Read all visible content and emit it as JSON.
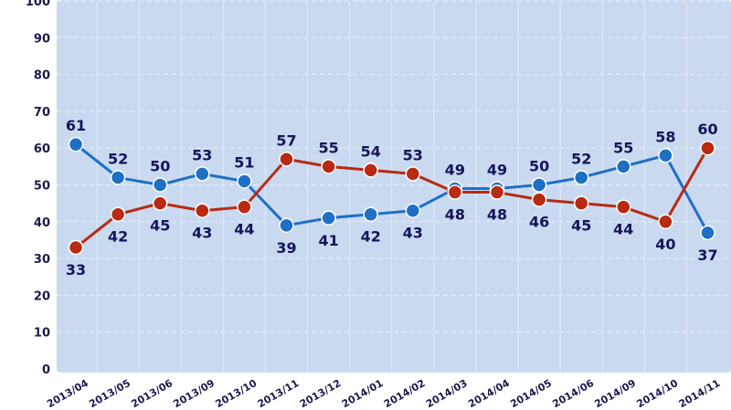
{
  "chart_data": {
    "type": "line",
    "title": "",
    "xlabel": "",
    "ylabel": "",
    "ylim": [
      0,
      100
    ],
    "yticks": [
      "0",
      "10",
      "20",
      "30",
      "40",
      "50",
      "60",
      "70",
      "80",
      "90",
      "100"
    ],
    "grid": true,
    "background_color": "#c9daf0",
    "categories": [
      "2013/04",
      "2013/05",
      "2013/06",
      "2013/09",
      "2013/10",
      "2013/11",
      "2013/12",
      "2014/01",
      "2014/02",
      "2014/03",
      "2014/04",
      "2014/05",
      "2014/06",
      "2014/09",
      "2014/10",
      "2014/11"
    ],
    "series": [
      {
        "color": "#1f6fc5",
        "values": [
          61,
          52,
          50,
          53,
          51,
          39,
          41,
          42,
          43,
          49,
          49,
          50,
          52,
          55,
          58,
          37
        ]
      },
      {
        "color": "#b82a12",
        "values": [
          33,
          42,
          45,
          43,
          44,
          57,
          55,
          54,
          53,
          48,
          48,
          46,
          45,
          44,
          40,
          60
        ]
      }
    ]
  }
}
